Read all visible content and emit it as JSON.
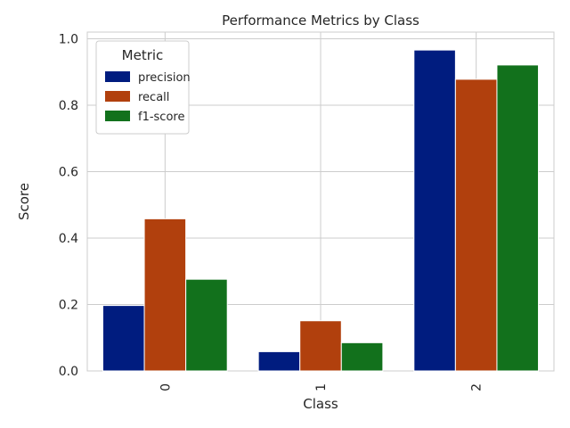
{
  "chart_data": {
    "type": "bar",
    "title": "Performance Metrics by Class",
    "xlabel": "Class",
    "ylabel": "Score",
    "categories": [
      "0",
      "1",
      "2"
    ],
    "ylim": [
      0,
      1.02
    ],
    "yticks": [
      "0.0",
      "0.2",
      "0.4",
      "0.6",
      "0.8",
      "1.0"
    ],
    "grid": true,
    "legend": {
      "title": "Metric",
      "placement": "top-left"
    },
    "series": [
      {
        "name": "precision",
        "color": "#001c7f",
        "values": [
          0.197,
          0.058,
          0.966
        ]
      },
      {
        "name": "recall",
        "color": "#b1400d",
        "values": [
          0.458,
          0.151,
          0.878
        ]
      },
      {
        "name": "f1-score",
        "color": "#12711c",
        "values": [
          0.276,
          0.085,
          0.921
        ]
      }
    ]
  }
}
